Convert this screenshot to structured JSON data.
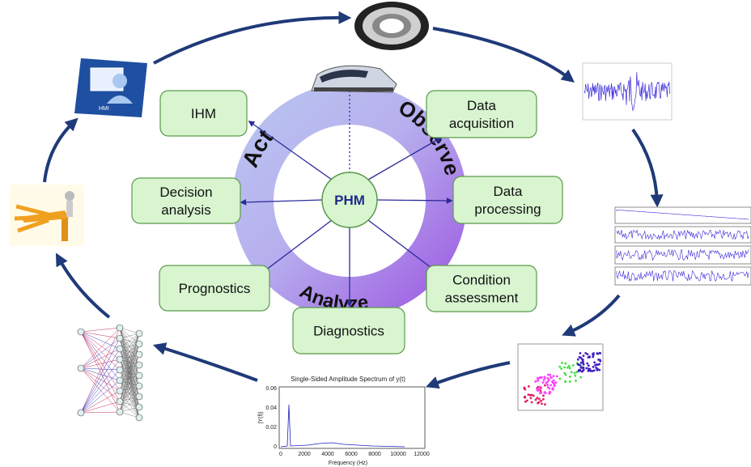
{
  "center": "PHM",
  "ring": {
    "act": "Act",
    "observe": "Observe",
    "analyze": "Analyze"
  },
  "boxes": [
    {
      "lines": [
        "IHM"
      ]
    },
    {
      "lines": [
        "Data",
        "acquisition"
      ]
    },
    {
      "lines": [
        "Data",
        "processing"
      ]
    },
    {
      "lines": [
        "Condition",
        "assessment"
      ]
    },
    {
      "lines": [
        "Diagnostics"
      ]
    },
    {
      "lines": [
        "Prognostics"
      ]
    },
    {
      "lines": [
        "Decision",
        "analysis"
      ]
    }
  ],
  "hmi_icon": "HMI",
  "spectrum": {
    "title": "Single-Sided Amplitude Spectrum of y(t)",
    "xlabel": "Frequency (Hz)",
    "ylabel": "|Y(f)|",
    "xticks": [
      "0",
      "2000",
      "4000",
      "6000",
      "8000",
      "10000",
      "12000"
    ],
    "yticks": [
      "0",
      "0.02",
      "0.04",
      "0.06"
    ]
  }
}
